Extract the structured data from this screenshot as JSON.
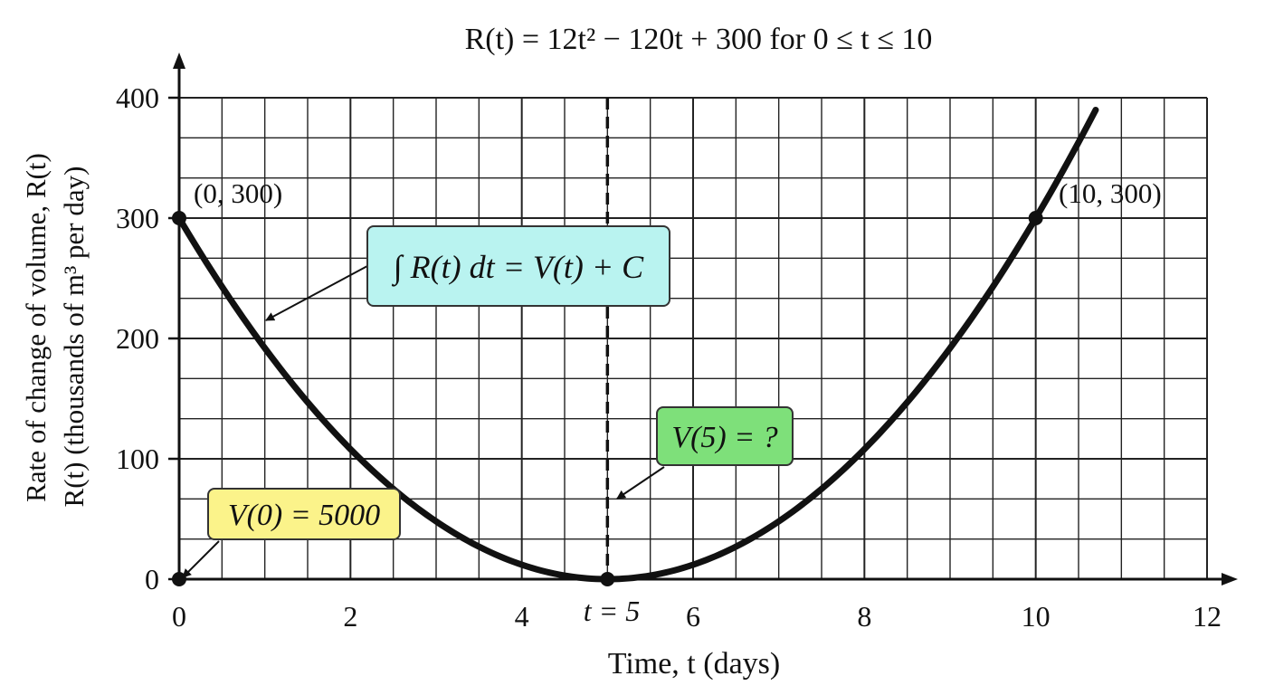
{
  "chart_data": {
    "type": "line",
    "title": "R(t) = 12t² − 120t + 300 for 0 ≤ t ≤ 10",
    "xlabel": "Time, t (days)",
    "ylabel": [
      "Rate of change of volume, R(t)",
      "R(t) (thousands of m³ per day)"
    ],
    "xlim": [
      0,
      12
    ],
    "ylim": [
      0,
      400
    ],
    "x_ticks": [
      "0",
      "2",
      "4",
      "6",
      "8",
      "10",
      "12"
    ],
    "y_ticks": [
      "0",
      "100",
      "200",
      "300",
      "400"
    ],
    "grid": true,
    "series": [
      {
        "formula": "12t^2 - 120t + 300",
        "x_range": [
          0,
          10.7
        ]
      }
    ],
    "points": [
      {
        "x": 0,
        "y": 300,
        "label": "(0, 300)"
      },
      {
        "x": 10,
        "y": 300,
        "label": "(10, 300)"
      },
      {
        "x": 5,
        "y": 0,
        "label": ""
      },
      {
        "x": 0,
        "y": 0,
        "label": ""
      }
    ],
    "vertical_line": {
      "x": 5,
      "label": "t = 5"
    },
    "annotations": [
      {
        "text": "∫ R(t) dt = V(t) + C",
        "color": "#b9f3f0"
      },
      {
        "text": "V(0) = 5000",
        "color": "#fbf38a"
      },
      {
        "text": "V(5) = ?",
        "color": "#7ee07a"
      }
    ]
  }
}
